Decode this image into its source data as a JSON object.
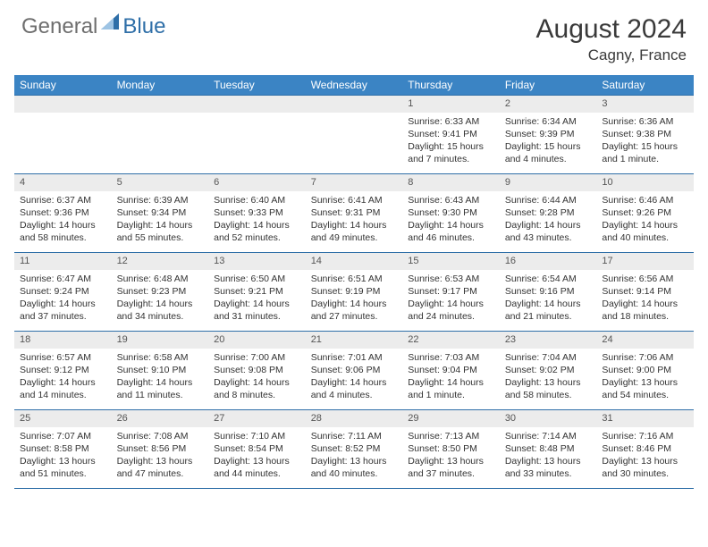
{
  "brand": {
    "part1": "General",
    "part2": "Blue"
  },
  "title": "August 2024",
  "location": "Cagny, France",
  "style": {
    "header_bg": "#3b84c4",
    "header_fg": "#ffffff",
    "daynum_bg": "#ececec",
    "border_color": "#2f6fa8",
    "body_fontsize": 10.5,
    "title_fontsize": 30,
    "location_fontsize": 17
  },
  "day_labels": [
    "Sunday",
    "Monday",
    "Tuesday",
    "Wednesday",
    "Thursday",
    "Friday",
    "Saturday"
  ],
  "weeks": [
    [
      {
        "n": "",
        "sr": "",
        "ss": "",
        "dl": ""
      },
      {
        "n": "",
        "sr": "",
        "ss": "",
        "dl": ""
      },
      {
        "n": "",
        "sr": "",
        "ss": "",
        "dl": ""
      },
      {
        "n": "",
        "sr": "",
        "ss": "",
        "dl": ""
      },
      {
        "n": "1",
        "sr": "Sunrise: 6:33 AM",
        "ss": "Sunset: 9:41 PM",
        "dl": "Daylight: 15 hours and 7 minutes."
      },
      {
        "n": "2",
        "sr": "Sunrise: 6:34 AM",
        "ss": "Sunset: 9:39 PM",
        "dl": "Daylight: 15 hours and 4 minutes."
      },
      {
        "n": "3",
        "sr": "Sunrise: 6:36 AM",
        "ss": "Sunset: 9:38 PM",
        "dl": "Daylight: 15 hours and 1 minute."
      }
    ],
    [
      {
        "n": "4",
        "sr": "Sunrise: 6:37 AM",
        "ss": "Sunset: 9:36 PM",
        "dl": "Daylight: 14 hours and 58 minutes."
      },
      {
        "n": "5",
        "sr": "Sunrise: 6:39 AM",
        "ss": "Sunset: 9:34 PM",
        "dl": "Daylight: 14 hours and 55 minutes."
      },
      {
        "n": "6",
        "sr": "Sunrise: 6:40 AM",
        "ss": "Sunset: 9:33 PM",
        "dl": "Daylight: 14 hours and 52 minutes."
      },
      {
        "n": "7",
        "sr": "Sunrise: 6:41 AM",
        "ss": "Sunset: 9:31 PM",
        "dl": "Daylight: 14 hours and 49 minutes."
      },
      {
        "n": "8",
        "sr": "Sunrise: 6:43 AM",
        "ss": "Sunset: 9:30 PM",
        "dl": "Daylight: 14 hours and 46 minutes."
      },
      {
        "n": "9",
        "sr": "Sunrise: 6:44 AM",
        "ss": "Sunset: 9:28 PM",
        "dl": "Daylight: 14 hours and 43 minutes."
      },
      {
        "n": "10",
        "sr": "Sunrise: 6:46 AM",
        "ss": "Sunset: 9:26 PM",
        "dl": "Daylight: 14 hours and 40 minutes."
      }
    ],
    [
      {
        "n": "11",
        "sr": "Sunrise: 6:47 AM",
        "ss": "Sunset: 9:24 PM",
        "dl": "Daylight: 14 hours and 37 minutes."
      },
      {
        "n": "12",
        "sr": "Sunrise: 6:48 AM",
        "ss": "Sunset: 9:23 PM",
        "dl": "Daylight: 14 hours and 34 minutes."
      },
      {
        "n": "13",
        "sr": "Sunrise: 6:50 AM",
        "ss": "Sunset: 9:21 PM",
        "dl": "Daylight: 14 hours and 31 minutes."
      },
      {
        "n": "14",
        "sr": "Sunrise: 6:51 AM",
        "ss": "Sunset: 9:19 PM",
        "dl": "Daylight: 14 hours and 27 minutes."
      },
      {
        "n": "15",
        "sr": "Sunrise: 6:53 AM",
        "ss": "Sunset: 9:17 PM",
        "dl": "Daylight: 14 hours and 24 minutes."
      },
      {
        "n": "16",
        "sr": "Sunrise: 6:54 AM",
        "ss": "Sunset: 9:16 PM",
        "dl": "Daylight: 14 hours and 21 minutes."
      },
      {
        "n": "17",
        "sr": "Sunrise: 6:56 AM",
        "ss": "Sunset: 9:14 PM",
        "dl": "Daylight: 14 hours and 18 minutes."
      }
    ],
    [
      {
        "n": "18",
        "sr": "Sunrise: 6:57 AM",
        "ss": "Sunset: 9:12 PM",
        "dl": "Daylight: 14 hours and 14 minutes."
      },
      {
        "n": "19",
        "sr": "Sunrise: 6:58 AM",
        "ss": "Sunset: 9:10 PM",
        "dl": "Daylight: 14 hours and 11 minutes."
      },
      {
        "n": "20",
        "sr": "Sunrise: 7:00 AM",
        "ss": "Sunset: 9:08 PM",
        "dl": "Daylight: 14 hours and 8 minutes."
      },
      {
        "n": "21",
        "sr": "Sunrise: 7:01 AM",
        "ss": "Sunset: 9:06 PM",
        "dl": "Daylight: 14 hours and 4 minutes."
      },
      {
        "n": "22",
        "sr": "Sunrise: 7:03 AM",
        "ss": "Sunset: 9:04 PM",
        "dl": "Daylight: 14 hours and 1 minute."
      },
      {
        "n": "23",
        "sr": "Sunrise: 7:04 AM",
        "ss": "Sunset: 9:02 PM",
        "dl": "Daylight: 13 hours and 58 minutes."
      },
      {
        "n": "24",
        "sr": "Sunrise: 7:06 AM",
        "ss": "Sunset: 9:00 PM",
        "dl": "Daylight: 13 hours and 54 minutes."
      }
    ],
    [
      {
        "n": "25",
        "sr": "Sunrise: 7:07 AM",
        "ss": "Sunset: 8:58 PM",
        "dl": "Daylight: 13 hours and 51 minutes."
      },
      {
        "n": "26",
        "sr": "Sunrise: 7:08 AM",
        "ss": "Sunset: 8:56 PM",
        "dl": "Daylight: 13 hours and 47 minutes."
      },
      {
        "n": "27",
        "sr": "Sunrise: 7:10 AM",
        "ss": "Sunset: 8:54 PM",
        "dl": "Daylight: 13 hours and 44 minutes."
      },
      {
        "n": "28",
        "sr": "Sunrise: 7:11 AM",
        "ss": "Sunset: 8:52 PM",
        "dl": "Daylight: 13 hours and 40 minutes."
      },
      {
        "n": "29",
        "sr": "Sunrise: 7:13 AM",
        "ss": "Sunset: 8:50 PM",
        "dl": "Daylight: 13 hours and 37 minutes."
      },
      {
        "n": "30",
        "sr": "Sunrise: 7:14 AM",
        "ss": "Sunset: 8:48 PM",
        "dl": "Daylight: 13 hours and 33 minutes."
      },
      {
        "n": "31",
        "sr": "Sunrise: 7:16 AM",
        "ss": "Sunset: 8:46 PM",
        "dl": "Daylight: 13 hours and 30 minutes."
      }
    ]
  ]
}
